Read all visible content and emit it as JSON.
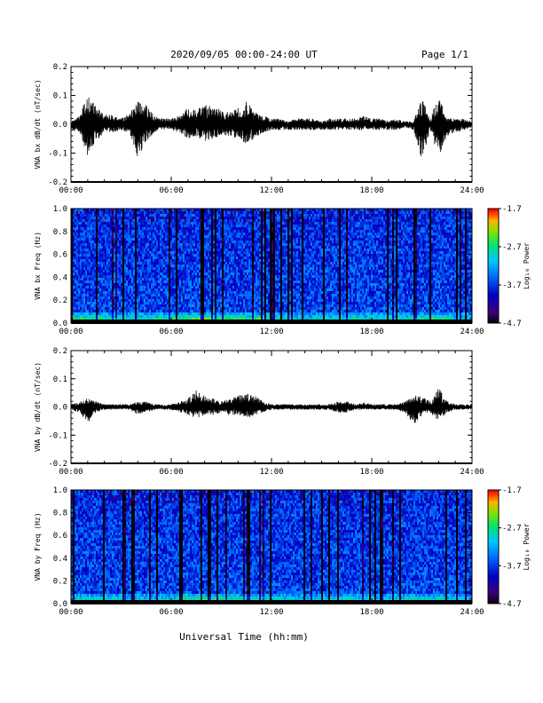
{
  "header": {
    "title": "2020/09/05  00:00-24:00 UT",
    "page": "Page 1/1",
    "xlabel": "Universal Time (hh:mm)"
  },
  "chart_data": [
    {
      "type": "line",
      "ylabel": "VNA bx dB/dt (nT/sec)",
      "ylim": [
        -0.2,
        0.2
      ],
      "yticks": [
        -0.2,
        -0.1,
        0.0,
        0.1,
        0.2
      ],
      "ytick_labels": [
        "-0.2",
        "-0.1",
        "0.0",
        "0.1",
        "0.2"
      ],
      "xlim": [
        0,
        24
      ],
      "xticks": [
        0,
        6,
        12,
        18,
        24
      ],
      "xtick_labels": [
        "00:00",
        "06:00",
        "12:00",
        "18:00",
        "24:00"
      ],
      "envelope": {
        "x_hours": [
          0,
          0.5,
          1,
          1.5,
          2,
          2.5,
          3,
          3.5,
          4,
          4.5,
          5,
          5.5,
          6,
          6.5,
          7,
          7.5,
          8,
          8.5,
          9,
          9.5,
          10,
          10.5,
          11,
          11.5,
          12,
          12.5,
          13,
          13.5,
          14,
          14.5,
          15,
          15.5,
          16,
          16.5,
          17,
          17.5,
          18,
          18.5,
          19,
          19.5,
          20,
          20.5,
          21,
          21.5,
          22,
          22.5,
          23,
          23.5,
          24
        ],
        "max": [
          0.01,
          0.03,
          0.11,
          0.06,
          0.04,
          0.03,
          0.02,
          0.04,
          0.08,
          0.07,
          0.03,
          0.02,
          0.02,
          0.03,
          0.06,
          0.05,
          0.07,
          0.06,
          0.05,
          0.04,
          0.06,
          0.08,
          0.05,
          0.03,
          0.02,
          0.02,
          0.01,
          0.02,
          0.02,
          0.02,
          0.01,
          0.02,
          0.02,
          0.02,
          0.02,
          0.03,
          0.02,
          0.02,
          0.01,
          0.02,
          0.01,
          0.01,
          0.09,
          0.02,
          0.1,
          0.02,
          0.02,
          0.02,
          0.01
        ],
        "min": [
          -0.02,
          -0.03,
          -0.11,
          -0.06,
          -0.03,
          -0.03,
          -0.02,
          -0.03,
          -0.12,
          -0.06,
          -0.03,
          -0.02,
          -0.02,
          -0.03,
          -0.05,
          -0.04,
          -0.06,
          -0.05,
          -0.04,
          -0.04,
          -0.05,
          -0.07,
          -0.05,
          -0.03,
          -0.02,
          -0.02,
          -0.02,
          -0.02,
          -0.02,
          -0.02,
          -0.02,
          -0.02,
          -0.02,
          -0.02,
          -0.02,
          -0.02,
          -0.02,
          -0.02,
          -0.02,
          -0.02,
          -0.01,
          -0.02,
          -0.13,
          -0.02,
          -0.12,
          -0.04,
          -0.03,
          -0.02,
          -0.01
        ]
      }
    },
    {
      "type": "heatmap",
      "ylabel": "VNA bx Freq (Hz)",
      "ylim": [
        0,
        1.0
      ],
      "yticks": [
        0,
        0.2,
        0.4,
        0.6,
        0.8,
        1.0
      ],
      "ytick_labels": [
        "0.0",
        "0.2",
        "0.4",
        "0.6",
        "0.8",
        "1.0"
      ],
      "xlim": [
        0,
        24
      ],
      "xticks": [
        0,
        6,
        12,
        18,
        24
      ],
      "xtick_labels": [
        "00:00",
        "06:00",
        "12:00",
        "18:00",
        "24:00"
      ],
      "colorbar": {
        "label": "Log₁₀ Power",
        "range": [
          -4.7,
          -1.7
        ],
        "ticks": [
          -1.7,
          -2.7,
          -3.7,
          -4.7
        ],
        "tick_labels": [
          "-1.7",
          "-2.7",
          "-3.7",
          "-4.7"
        ]
      },
      "low_freq_power_by_hour": [
        -2.6,
        -2.6,
        -2.7,
        -2.7,
        -2.8,
        -2.7,
        -2.6,
        -2.4,
        -2.2,
        -2.4,
        -2.5,
        -2.5,
        -2.8,
        -2.9,
        -2.9,
        -2.8,
        -2.8,
        -2.7,
        -2.9,
        -2.8,
        -2.8,
        -2.6,
        -2.6,
        -2.9,
        -3.0
      ]
    },
    {
      "type": "line",
      "ylabel": "VNA by dB/dt (nT/sec)",
      "ylim": [
        -0.2,
        0.2
      ],
      "yticks": [
        -0.2,
        -0.1,
        0.0,
        0.1,
        0.2
      ],
      "ytick_labels": [
        "-0.2",
        "-0.1",
        "0.0",
        "0.1",
        "0.2"
      ],
      "xlim": [
        0,
        24
      ],
      "xticks": [
        0,
        6,
        12,
        18,
        24
      ],
      "xtick_labels": [
        "00:00",
        "06:00",
        "12:00",
        "18:00",
        "24:00"
      ],
      "envelope": {
        "x_hours": [
          0,
          0.5,
          1,
          1.5,
          2,
          2.5,
          3,
          3.5,
          4,
          4.5,
          5,
          5.5,
          6,
          6.5,
          7,
          7.5,
          8,
          8.5,
          9,
          9.5,
          10,
          10.5,
          11,
          11.5,
          12,
          12.5,
          13,
          13.5,
          14,
          14.5,
          15,
          15.5,
          16,
          16.5,
          17,
          17.5,
          18,
          18.5,
          19,
          19.5,
          20,
          20.5,
          21,
          21.5,
          22,
          22.5,
          23,
          23.5,
          24
        ],
        "max": [
          0.01,
          0.02,
          0.03,
          0.02,
          0.01,
          0.01,
          0.01,
          0.01,
          0.02,
          0.02,
          0.01,
          0.01,
          0.01,
          0.02,
          0.03,
          0.06,
          0.04,
          0.03,
          0.02,
          0.03,
          0.04,
          0.05,
          0.04,
          0.02,
          0.01,
          0.01,
          0.01,
          0.01,
          0.01,
          0.01,
          0.01,
          0.01,
          0.02,
          0.02,
          0.01,
          0.02,
          0.01,
          0.01,
          0.01,
          0.01,
          0.02,
          0.04,
          0.04,
          0.02,
          0.07,
          0.02,
          0.01,
          0.01,
          0.01
        ],
        "min": [
          -0.01,
          -0.02,
          -0.06,
          -0.02,
          -0.01,
          -0.01,
          -0.01,
          -0.01,
          -0.03,
          -0.02,
          -0.01,
          -0.01,
          -0.01,
          -0.02,
          -0.03,
          -0.04,
          -0.03,
          -0.03,
          -0.02,
          -0.03,
          -0.03,
          -0.04,
          -0.03,
          -0.02,
          -0.01,
          -0.01,
          -0.01,
          -0.01,
          -0.01,
          -0.01,
          -0.01,
          -0.01,
          -0.02,
          -0.02,
          -0.01,
          -0.01,
          -0.01,
          -0.01,
          -0.01,
          -0.01,
          -0.02,
          -0.07,
          -0.03,
          -0.02,
          -0.05,
          -0.02,
          -0.01,
          -0.01,
          -0.01
        ]
      }
    },
    {
      "type": "heatmap",
      "ylabel": "VNA by Freq (Hz)",
      "ylim": [
        0,
        1.0
      ],
      "yticks": [
        0,
        0.2,
        0.4,
        0.6,
        0.8,
        1.0
      ],
      "ytick_labels": [
        "0.0",
        "0.2",
        "0.4",
        "0.6",
        "0.8",
        "1.0"
      ],
      "xlim": [
        0,
        24
      ],
      "xticks": [
        0,
        6,
        12,
        18,
        24
      ],
      "xtick_labels": [
        "00:00",
        "06:00",
        "12:00",
        "18:00",
        "24:00"
      ],
      "colorbar": {
        "label": "Log₁₀ Power",
        "range": [
          -4.7,
          -1.7
        ],
        "ticks": [
          -1.7,
          -2.7,
          -3.7,
          -4.7
        ],
        "tick_labels": [
          "-1.7",
          "-2.7",
          "-3.7",
          "-4.7"
        ]
      },
      "low_freq_power_by_hour": [
        -2.8,
        -2.8,
        -2.9,
        -2.9,
        -3.0,
        -2.9,
        -2.9,
        -2.6,
        -2.5,
        -2.6,
        -2.7,
        -2.7,
        -2.9,
        -3.0,
        -3.0,
        -2.9,
        -2.9,
        -2.9,
        -3.0,
        -2.9,
        -2.9,
        -2.8,
        -2.8,
        -3.0,
        -3.1
      ]
    }
  ]
}
